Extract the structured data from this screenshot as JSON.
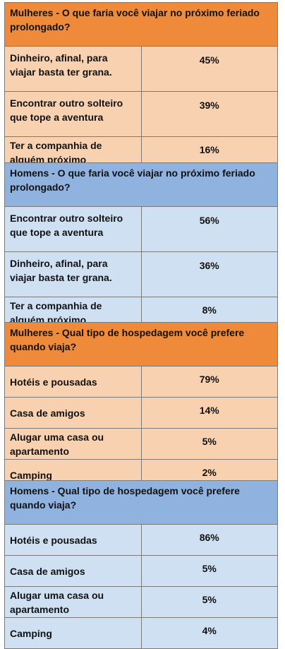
{
  "colors": {
    "women_header": "#ef8a3a",
    "women_body": "#f8d1b0",
    "men_header": "#8fb2de",
    "men_body": "#cfe0f3"
  },
  "tables": [
    {
      "title": "Mulheres - O que faria você viajar no próximo feriado prolongado?",
      "rows": [
        {
          "label": "Dinheiro, afinal, para viajar basta ter grana.",
          "value": "45%"
        },
        {
          "label": "Encontrar outro solteiro que tope a aventura",
          "value": "39%"
        },
        {
          "label": "Ter a companhia de alguém próximo",
          "value": "16%"
        }
      ]
    },
    {
      "title": "Homens - O que faria você viajar no próximo feriado prolongado?",
      "rows": [
        {
          "label": "Encontrar outro solteiro que tope a aventura",
          "value": "56%"
        },
        {
          "label": "Dinheiro, afinal, para viajar basta ter grana.",
          "value": "36%"
        },
        {
          "label": "Ter a companhia de alguém próximo",
          "value": "8%"
        }
      ]
    },
    {
      "title": "Mulheres - Qual tipo de hospedagem você prefere quando viaja?",
      "rows": [
        {
          "label": "Hotéis e pousadas",
          "value": "79%"
        },
        {
          "label": "Casa de amigos",
          "value": "14%"
        },
        {
          "label": "Alugar uma casa ou apartamento",
          "value": "5%"
        },
        {
          "label": "Camping",
          "value": "2%"
        }
      ]
    },
    {
      "title": "Homens - Qual tipo de hospedagem você prefere quando viaja?",
      "rows": [
        {
          "label": "Hotéis e pousadas",
          "value": "86%"
        },
        {
          "label": "Casa de amigos",
          "value": "5%"
        },
        {
          "label": "Alugar uma casa ou apartamento",
          "value": "5%"
        },
        {
          "label": "Camping",
          "value": "4%"
        }
      ]
    }
  ]
}
